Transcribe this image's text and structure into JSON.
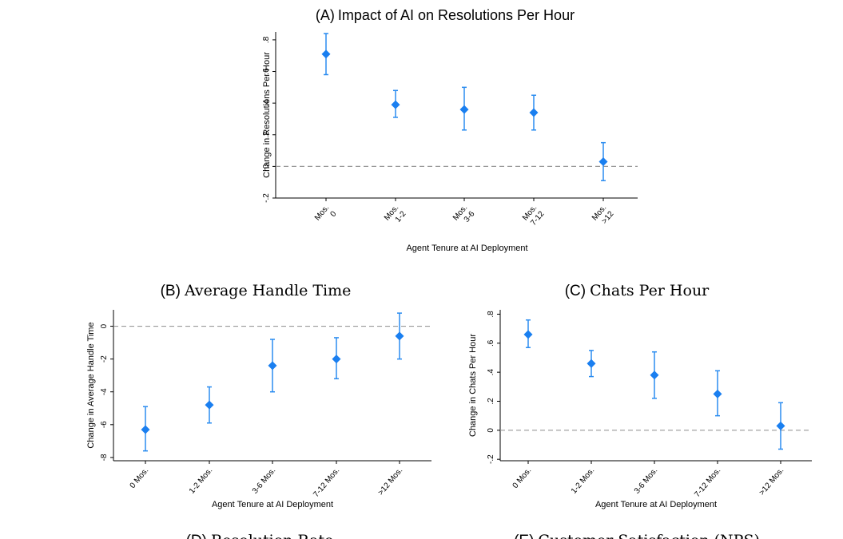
{
  "colors": {
    "marker": "#1a7ff0",
    "errorbar": "#2a8cf0",
    "zero_line": "#999999"
  },
  "chart_data": [
    {
      "id": "A",
      "type": "scatter",
      "title_letter": "(A)",
      "title": "Impact of AI on Resolutions Per Hour",
      "xlabel": "Agent Tenure at AI Deployment",
      "ylabel": "Change in Resolutions Per Hour",
      "categories": [
        "Mos.\n0",
        "Mos.\n1-2",
        "Mos.\n3-6",
        "Mos.\n7-12",
        "Mos.\n>12"
      ],
      "values": [
        0.71,
        0.39,
        0.36,
        0.34,
        0.03
      ],
      "ci_low": [
        0.58,
        0.31,
        0.23,
        0.23,
        -0.09
      ],
      "ci_high": [
        0.84,
        0.48,
        0.5,
        0.45,
        0.15
      ],
      "ylim": [
        -0.2,
        0.85
      ],
      "yticks": [
        -0.2,
        0,
        0.2,
        0.4,
        0.6,
        0.8
      ],
      "ytick_labels": [
        "-.2",
        "0",
        ".2",
        ".4",
        ".6",
        ".8"
      ],
      "reference_line": 0
    },
    {
      "id": "B",
      "type": "scatter",
      "title_letter": "(B)",
      "title": "Average Handle Time",
      "xlabel": "Agent Tenure at AI Deployment",
      "ylabel": "Change in Average Handle Time",
      "categories": [
        "0 Mos.",
        "1-2 Mos.",
        "3-6 Mos.",
        "7-12 Mos.",
        ">12 Mos."
      ],
      "values": [
        -6.3,
        -4.8,
        -2.4,
        -2.0,
        -0.6
      ],
      "ci_low": [
        -7.6,
        -5.9,
        -4.0,
        -3.2,
        -2.0
      ],
      "ci_high": [
        -4.9,
        -3.7,
        -0.8,
        -0.7,
        0.8
      ],
      "ylim": [
        -8.2,
        1.0
      ],
      "yticks": [
        -8,
        -6,
        -4,
        -2,
        0
      ],
      "ytick_labels": [
        "-8",
        "-6",
        "-4",
        "-2",
        "0"
      ],
      "reference_line": 0
    },
    {
      "id": "C",
      "type": "scatter",
      "title_letter": "(C)",
      "title": "Chats Per Hour",
      "xlabel": "Agent Tenure at AI Deployment",
      "ylabel": "Change in Chats Per Hour",
      "categories": [
        "0 Mos.",
        "1-2 Mos.",
        "3-6 Mos.",
        "7-12 Mos.",
        ">12 Mos."
      ],
      "values": [
        0.66,
        0.46,
        0.38,
        0.25,
        0.03
      ],
      "ci_low": [
        0.57,
        0.37,
        0.22,
        0.1,
        -0.13
      ],
      "ci_high": [
        0.76,
        0.55,
        0.54,
        0.41,
        0.19
      ],
      "ylim": [
        -0.21,
        0.83
      ],
      "yticks": [
        -0.2,
        0,
        0.2,
        0.4,
        0.6,
        0.8
      ],
      "ytick_labels": [
        "-.2",
        "0",
        ".2",
        ".4",
        ".6",
        ".8"
      ],
      "reference_line": 0
    },
    {
      "id": "D",
      "type": "scatter",
      "title_letter": "(D)",
      "title": "Resolution Rate"
    },
    {
      "id": "E",
      "type": "scatter",
      "title_letter": "(E)",
      "title": "Customer Satisfaction (NPS)"
    }
  ]
}
